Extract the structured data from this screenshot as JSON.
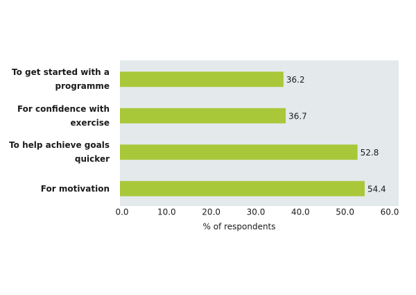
{
  "chart_data": {
    "type": "bar",
    "orientation": "horizontal",
    "x_label": "% of respondents",
    "categories": [
      "To get started with a programme",
      "For confidence with exercise",
      "To help achieve goals quicker",
      "For motivation"
    ],
    "values": [
      36.2,
      36.7,
      52.8,
      54.4
    ],
    "color": "#a8c83a",
    "xlim": [
      0,
      60
    ],
    "xticks": [
      {
        "value": 0,
        "label": "0.0"
      },
      {
        "value": 10,
        "label": "10.0"
      },
      {
        "value": 20,
        "label": "20.0"
      },
      {
        "value": 30,
        "label": "30.0"
      },
      {
        "value": 40,
        "label": "40.0"
      },
      {
        "value": 50,
        "label": "50.0"
      },
      {
        "value": 60,
        "label": "60.0"
      }
    ]
  }
}
